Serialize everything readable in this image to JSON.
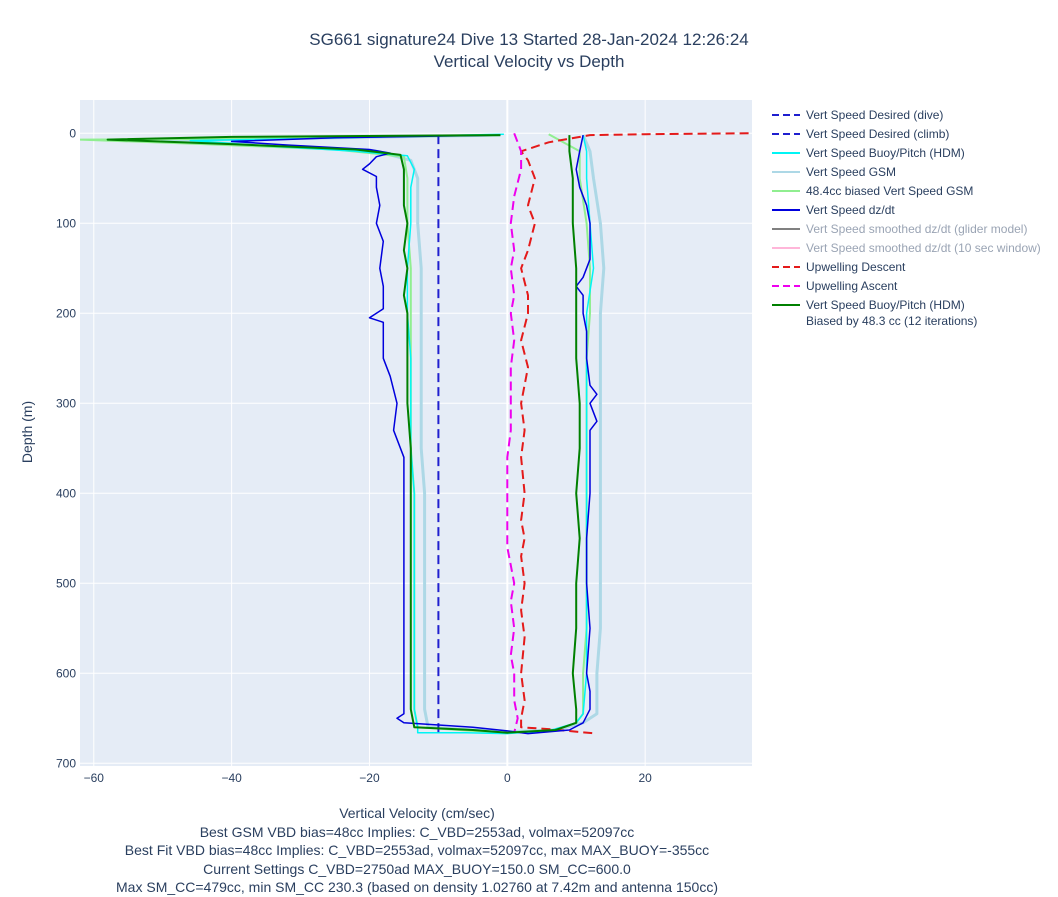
{
  "header": {
    "title_line1": "SG661 signature24 Dive 13 Started 28-Jan-2024 12:26:24",
    "title_line2": "Vertical Velocity vs Depth"
  },
  "notes": [
    "Best GSM VBD bias=48cc Implies: C_VBD=2553ad, volmax=52097cc",
    "Best Fit VBD bias=48cc Implies: C_VBD=2553ad, volmax=52097cc, max MAX_BUOY=-355cc",
    "Current Settings C_VBD=2750ad MAX_BUOY=150.0 SM_CC=600.0",
    "Max SM_CC=479cc, min SM_CC 230.3 (based on density 1.02760 at 7.42m and antenna 150cc)"
  ],
  "chart_data": {
    "type": "line",
    "xlabel": "Vertical Velocity (cm/sec)",
    "ylabel": "Depth (m)",
    "xlim": [
      -62,
      35.5
    ],
    "ylim": [
      703,
      -37
    ],
    "x_ticks": [
      -60,
      -40,
      -20,
      0,
      20
    ],
    "y_ticks": [
      0,
      100,
      200,
      300,
      400,
      500,
      600,
      700
    ],
    "grid": true,
    "legend_position": "right",
    "series": [
      {
        "name": "Vert Speed Desired (dive)",
        "color": "#1f1fcf",
        "dash": "dash",
        "width": 2,
        "points": [
          [
            -10,
            2
          ],
          [
            -10,
            668
          ]
        ]
      },
      {
        "name": "Vert Speed Desired (climb)",
        "color": "#1f1fcf",
        "dash": "dash",
        "width": 2,
        "points": []
      },
      {
        "name": "Vert Speed Buoy/Pitch (HDM)",
        "color": "#00f5f5",
        "dash": "solid",
        "width": 1.5,
        "points": [
          [
            -0.5,
            1
          ],
          [
            -30,
            6
          ],
          [
            -46,
            8
          ],
          [
            -35,
            14
          ],
          [
            -22,
            20
          ],
          [
            -14.5,
            25
          ],
          [
            -13.5,
            40
          ],
          [
            -14,
            60
          ],
          [
            -14,
            100
          ],
          [
            -14.5,
            150
          ],
          [
            -14.5,
            200
          ],
          [
            -14,
            250
          ],
          [
            -14,
            300
          ],
          [
            -14,
            350
          ],
          [
            -13.5,
            400
          ],
          [
            -13.5,
            450
          ],
          [
            -13.5,
            500
          ],
          [
            -13.5,
            550
          ],
          [
            -13.5,
            600
          ],
          [
            -13.5,
            640
          ],
          [
            -13,
            660
          ],
          [
            -13,
            666
          ],
          [
            -6,
            666
          ],
          [
            0,
            667
          ],
          [
            6,
            664
          ],
          [
            10,
            655
          ],
          [
            11,
            645
          ],
          [
            11.5,
            600
          ],
          [
            11.5,
            550
          ],
          [
            11.5,
            500
          ],
          [
            11.5,
            450
          ],
          [
            11.5,
            400
          ],
          [
            11.5,
            350
          ],
          [
            11.5,
            300
          ],
          [
            11.5,
            250
          ],
          [
            11.5,
            200
          ],
          [
            12.5,
            150
          ],
          [
            12,
            100
          ],
          [
            11.5,
            50
          ],
          [
            11.5,
            20
          ],
          [
            11,
            2
          ]
        ]
      },
      {
        "name": "Vert Speed GSM",
        "color": "#add8e6",
        "dash": "solid",
        "width": 3,
        "points": [
          [
            -1,
            2
          ],
          [
            -34,
            6
          ],
          [
            -50,
            8
          ],
          [
            -32,
            14
          ],
          [
            -19,
            20
          ],
          [
            -14,
            30
          ],
          [
            -13,
            50
          ],
          [
            -13,
            100
          ],
          [
            -12.5,
            150
          ],
          [
            -12.5,
            200
          ],
          [
            -12.5,
            250
          ],
          [
            -12.5,
            300
          ],
          [
            -12.5,
            350
          ],
          [
            -12,
            400
          ],
          [
            -12,
            450
          ],
          [
            -12,
            500
          ],
          [
            -12,
            550
          ],
          [
            -12,
            600
          ],
          [
            -12,
            640
          ],
          [
            -11.5,
            660
          ],
          [
            -5,
            663
          ],
          [
            0,
            665
          ],
          [
            7,
            663
          ],
          [
            11,
            655
          ],
          [
            13,
            645
          ],
          [
            13,
            600
          ],
          [
            13.5,
            550
          ],
          [
            13.5,
            500
          ],
          [
            13.5,
            450
          ],
          [
            13.5,
            400
          ],
          [
            13.5,
            350
          ],
          [
            13.5,
            300
          ],
          [
            13.5,
            250
          ],
          [
            13.5,
            200
          ],
          [
            14,
            150
          ],
          [
            13.5,
            100
          ],
          [
            12.5,
            50
          ],
          [
            12,
            20
          ],
          [
            11,
            2
          ]
        ]
      },
      {
        "name": "48.4cc biased Vert Speed GSM",
        "color": "#90ee90",
        "dash": "solid",
        "width": 2,
        "points": [
          [
            -1,
            2
          ],
          [
            -36,
            6
          ],
          [
            -62,
            7
          ],
          [
            -44,
            12
          ],
          [
            -25,
            18
          ],
          [
            -15,
            26
          ],
          [
            -14.5,
            50
          ],
          [
            -14.5,
            100
          ],
          [
            -14,
            150
          ],
          [
            -14,
            200
          ],
          [
            -14,
            250
          ],
          [
            -14,
            300
          ],
          [
            -14,
            350
          ],
          [
            -13.5,
            400
          ],
          [
            -13.5,
            450
          ],
          [
            -13.5,
            500
          ],
          [
            -13.5,
            550
          ],
          [
            -13.5,
            600
          ],
          [
            -13.5,
            640
          ],
          [
            -13,
            660
          ],
          [
            -5,
            664
          ],
          [
            0,
            666
          ],
          [
            7,
            663
          ],
          [
            10,
            655
          ],
          [
            11,
            645
          ],
          [
            11,
            600
          ],
          [
            11.5,
            550
          ],
          [
            11.5,
            500
          ],
          [
            11.5,
            450
          ],
          [
            11.5,
            400
          ],
          [
            11.5,
            350
          ],
          [
            11.5,
            300
          ],
          [
            11.5,
            250
          ],
          [
            12,
            200
          ],
          [
            12,
            150
          ],
          [
            11.5,
            100
          ],
          [
            10.5,
            50
          ],
          [
            10.5,
            20
          ],
          [
            6,
            1
          ]
        ]
      },
      {
        "name": "Vert Speed dz/dt",
        "color": "#0000dd",
        "dash": "solid",
        "width": 1.5,
        "points": [
          [
            -1,
            2
          ],
          [
            -25,
            5
          ],
          [
            -40,
            9
          ],
          [
            -32,
            13
          ],
          [
            -20,
            18
          ],
          [
            -17,
            22
          ],
          [
            -19,
            26
          ],
          [
            -20,
            34
          ],
          [
            -21,
            40
          ],
          [
            -19,
            48
          ],
          [
            -19,
            60
          ],
          [
            -18.5,
            80
          ],
          [
            -19,
            100
          ],
          [
            -18,
            120
          ],
          [
            -18.5,
            150
          ],
          [
            -18,
            170
          ],
          [
            -18,
            195
          ],
          [
            -20,
            205
          ],
          [
            -18,
            210
          ],
          [
            -18,
            250
          ],
          [
            -17,
            270
          ],
          [
            -16,
            300
          ],
          [
            -16.5,
            330
          ],
          [
            -15,
            360
          ],
          [
            -15,
            400
          ],
          [
            -15,
            450
          ],
          [
            -15,
            500
          ],
          [
            -15,
            550
          ],
          [
            -15,
            600
          ],
          [
            -15,
            630
          ],
          [
            -15,
            645
          ],
          [
            -16,
            650
          ],
          [
            -15,
            655
          ],
          [
            -5,
            660
          ],
          [
            0,
            664
          ],
          [
            3,
            667
          ],
          [
            9,
            663
          ],
          [
            11,
            655
          ],
          [
            12,
            640
          ],
          [
            12,
            620
          ],
          [
            11.5,
            600
          ],
          [
            12,
            550
          ],
          [
            11.5,
            500
          ],
          [
            11.5,
            450
          ],
          [
            12,
            400
          ],
          [
            12,
            350
          ],
          [
            12,
            330
          ],
          [
            13,
            320
          ],
          [
            12,
            300
          ],
          [
            13,
            290
          ],
          [
            12,
            280
          ],
          [
            11.5,
            250
          ],
          [
            11.5,
            220
          ],
          [
            11,
            200
          ],
          [
            11,
            180
          ],
          [
            10,
            170
          ],
          [
            11,
            160
          ],
          [
            12,
            140
          ],
          [
            12,
            100
          ],
          [
            11.5,
            80
          ],
          [
            10.5,
            60
          ],
          [
            10,
            40
          ],
          [
            10.5,
            20
          ],
          [
            11,
            2
          ]
        ]
      },
      {
        "name": "Vert Speed smoothed dz/dt (glider model)",
        "color": "#808080",
        "dash": "solid",
        "width": 2,
        "muted": true,
        "points": []
      },
      {
        "name": "Vert Speed smoothed dz/dt (10 sec window)",
        "color": "#ffb6d9",
        "dash": "solid",
        "width": 2,
        "muted": true,
        "points": []
      },
      {
        "name": "Upwelling Descent",
        "color": "#e41a1a",
        "dash": "dash",
        "width": 2,
        "points": [
          [
            35,
            0
          ],
          [
            20,
            1
          ],
          [
            12,
            2
          ],
          [
            6,
            10
          ],
          [
            2,
            20
          ],
          [
            3,
            30
          ],
          [
            4,
            50
          ],
          [
            3,
            80
          ],
          [
            4,
            100
          ],
          [
            3,
            130
          ],
          [
            2,
            150
          ],
          [
            3,
            180
          ],
          [
            3,
            200
          ],
          [
            2,
            230
          ],
          [
            3,
            260
          ],
          [
            2,
            300
          ],
          [
            2.5,
            330
          ],
          [
            2,
            360
          ],
          [
            2.5,
            400
          ],
          [
            2,
            430
          ],
          [
            2.5,
            450
          ],
          [
            2,
            470
          ],
          [
            2.5,
            500
          ],
          [
            2,
            530
          ],
          [
            2.5,
            560
          ],
          [
            2,
            600
          ],
          [
            2.5,
            630
          ],
          [
            2,
            650
          ],
          [
            2,
            660
          ],
          [
            6,
            662
          ],
          [
            13,
            667
          ]
        ]
      },
      {
        "name": "Upwelling Ascent",
        "color": "#ee00ee",
        "dash": "dash",
        "width": 2,
        "points": [
          [
            1,
            0
          ],
          [
            2,
            20
          ],
          [
            2,
            40
          ],
          [
            1,
            70
          ],
          [
            0.5,
            100
          ],
          [
            1,
            130
          ],
          [
            0.5,
            150
          ],
          [
            1,
            180
          ],
          [
            0.5,
            200
          ],
          [
            1,
            230
          ],
          [
            0.5,
            260
          ],
          [
            0.5,
            300
          ],
          [
            0.5,
            330
          ],
          [
            0,
            360
          ],
          [
            0,
            400
          ],
          [
            0,
            430
          ],
          [
            0,
            460
          ],
          [
            0.5,
            480
          ],
          [
            1,
            500
          ],
          [
            0.5,
            520
          ],
          [
            1,
            550
          ],
          [
            0.5,
            580
          ],
          [
            1,
            600
          ],
          [
            1,
            630
          ],
          [
            1.5,
            650
          ],
          [
            1,
            666
          ]
        ]
      },
      {
        "name": "Vert Speed Buoy/Pitch (HDM)\nBiased by 48.3 cc (12 iterations)",
        "color": "#008000",
        "dash": "solid",
        "width": 2,
        "points": [
          [
            -1,
            2
          ],
          [
            -40,
            4
          ],
          [
            -58,
            7
          ],
          [
            -40,
            12
          ],
          [
            -22,
            18
          ],
          [
            -15.5,
            24
          ],
          [
            -15,
            40
          ],
          [
            -15,
            60
          ],
          [
            -15,
            80
          ],
          [
            -14.5,
            100
          ],
          [
            -15,
            130
          ],
          [
            -14.5,
            150
          ],
          [
            -15,
            180
          ],
          [
            -14.5,
            200
          ],
          [
            -14.5,
            250
          ],
          [
            -14.5,
            260
          ],
          [
            -14.5,
            300
          ],
          [
            -14,
            350
          ],
          [
            -14,
            400
          ],
          [
            -14,
            440
          ],
          [
            -14,
            480
          ],
          [
            -14,
            500
          ],
          [
            -14,
            550
          ],
          [
            -14,
            600
          ],
          [
            -14,
            640
          ],
          [
            -13.5,
            660
          ],
          [
            -5,
            663
          ],
          [
            0,
            666
          ],
          [
            7,
            663
          ],
          [
            10,
            655
          ],
          [
            10,
            640
          ],
          [
            9.5,
            600
          ],
          [
            10,
            550
          ],
          [
            10,
            500
          ],
          [
            10.5,
            450
          ],
          [
            10,
            400
          ],
          [
            10.5,
            350
          ],
          [
            10.5,
            300
          ],
          [
            10,
            250
          ],
          [
            10,
            200
          ],
          [
            10,
            150
          ],
          [
            9.5,
            100
          ],
          [
            9.5,
            50
          ],
          [
            9,
            20
          ],
          [
            9,
            2
          ]
        ]
      }
    ]
  }
}
